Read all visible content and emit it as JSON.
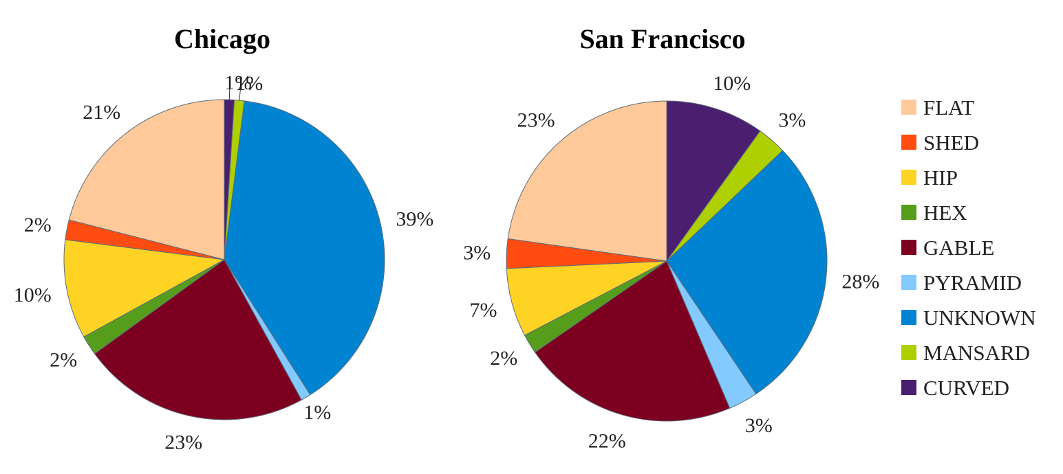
{
  "legend": {
    "items": [
      {
        "label": "FLAT",
        "color": "#FFC999"
      },
      {
        "label": "SHED",
        "color": "#FF4D12"
      },
      {
        "label": "HIP",
        "color": "#FFD323"
      },
      {
        "label": "HEX",
        "color": "#579D1C"
      },
      {
        "label": "GABLE",
        "color": "#7E0021"
      },
      {
        "label": "PYRAMID",
        "color": "#83CAFF"
      },
      {
        "label": "UNKNOWN",
        "color": "#0084D1"
      },
      {
        "label": "MANSARD",
        "color": "#AECF00"
      },
      {
        "label": "CURVED",
        "color": "#4B1F6F"
      }
    ]
  },
  "chart_data": [
    {
      "type": "pie",
      "title": "Chicago",
      "categories": [
        "CURVED",
        "MANSARD",
        "UNKNOWN",
        "PYRAMID",
        "GABLE",
        "HEX",
        "HIP",
        "SHED",
        "FLAT"
      ],
      "values": [
        1,
        1,
        39,
        1,
        23,
        2,
        10,
        2,
        21
      ],
      "labels": [
        "1%",
        "1%",
        "39%",
        "1%",
        "23%",
        "2%",
        "10%",
        "2%",
        "21%"
      ],
      "start": "12 o'clock",
      "direction": "clockwise"
    },
    {
      "type": "pie",
      "title": "San Francisco",
      "categories": [
        "CURVED",
        "MANSARD",
        "UNKNOWN",
        "PYRAMID",
        "GABLE",
        "HEX",
        "HIP",
        "SHED",
        "FLAT"
      ],
      "values": [
        10,
        3,
        28,
        3,
        22,
        2,
        7,
        3,
        23
      ],
      "labels": [
        "10%",
        "3%",
        "28%",
        "3%",
        "22%",
        "2%",
        "7%",
        "3%",
        "23%"
      ],
      "start": "12 o'clock",
      "direction": "clockwise"
    }
  ]
}
